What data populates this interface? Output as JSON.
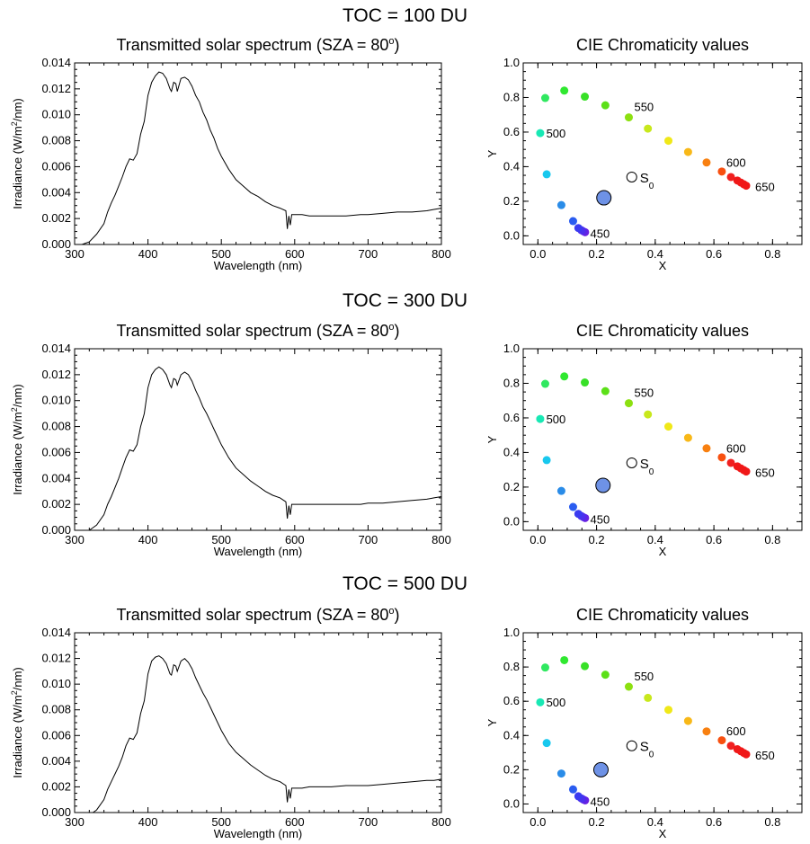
{
  "chart_data": [
    {
      "type": "line",
      "panel_heading": "TOC = 100 DU",
      "title": "Transmitted solar spectrum (SZA = 80",
      "title_superscript": "o",
      "title_suffix": ")",
      "xlabel": "Wavelength (nm)",
      "ylabel_prefix": "Irradiance (W/m",
      "ylabel_superscript": "2",
      "ylabel_suffix": "/nm)",
      "xlim": [
        300,
        800
      ],
      "ylim": [
        0,
        0.014
      ],
      "xticks": [
        "300",
        "400",
        "500",
        "600",
        "700",
        "800"
      ],
      "yticks": [
        "0.000",
        "0.002",
        "0.004",
        "0.006",
        "0.008",
        "0.010",
        "0.012",
        "0.014"
      ],
      "grid": false,
      "series": [
        {
          "x": [
            310,
            320,
            330,
            340,
            345,
            350,
            355,
            360,
            365,
            370,
            375,
            380,
            385,
            390,
            395,
            400,
            405,
            410,
            415,
            420,
            425,
            430,
            432,
            435,
            438,
            440,
            445,
            450,
            455,
            460,
            465,
            470,
            475,
            480,
            485,
            490,
            495,
            500,
            510,
            520,
            530,
            540,
            550,
            560,
            570,
            580,
            588,
            590,
            592,
            594,
            596,
            600,
            610,
            620,
            630,
            650,
            670,
            690,
            700,
            720,
            740,
            760,
            780,
            790,
            800
          ],
          "y": [
            0.0,
            0.0002,
            0.0008,
            0.0016,
            0.0025,
            0.0032,
            0.0038,
            0.0045,
            0.0052,
            0.006,
            0.0066,
            0.0065,
            0.007,
            0.0085,
            0.0095,
            0.0115,
            0.0125,
            0.013,
            0.0133,
            0.0132,
            0.0128,
            0.012,
            0.0118,
            0.0125,
            0.0124,
            0.0118,
            0.0128,
            0.0129,
            0.0127,
            0.0122,
            0.0115,
            0.011,
            0.0102,
            0.0096,
            0.0088,
            0.0082,
            0.0074,
            0.0068,
            0.0058,
            0.005,
            0.0045,
            0.004,
            0.0037,
            0.0033,
            0.003,
            0.0028,
            0.0026,
            0.0012,
            0.0022,
            0.0015,
            0.0023,
            0.0023,
            0.0023,
            0.0022,
            0.0022,
            0.0022,
            0.0022,
            0.0023,
            0.0023,
            0.0024,
            0.0025,
            0.0025,
            0.0026,
            0.0027,
            0.0028
          ]
        }
      ]
    },
    {
      "type": "scatter",
      "title": "CIE Chromaticity values",
      "xlabel": "X",
      "ylabel": "Y",
      "xlim": [
        -0.05,
        0.9
      ],
      "ylim": [
        -0.05,
        1.0
      ],
      "xticks": [
        "0.0",
        "0.2",
        "0.4",
        "0.6",
        "0.8"
      ],
      "yticks": [
        "0.0",
        "0.2",
        "0.4",
        "0.6",
        "0.8",
        "1.0"
      ],
      "grid": false,
      "wavelength_labels": [
        {
          "text": "500",
          "x": 0.01,
          "y": 0.59
        },
        {
          "text": "550",
          "x": 0.31,
          "y": 0.69
        },
        {
          "text": "600",
          "x": 0.63,
          "y": 0.38
        },
        {
          "text": "650",
          "x": 0.71,
          "y": 0.29
        },
        {
          "text": "450",
          "x": 0.16,
          "y": 0.02
        }
      ],
      "locus": [
        {
          "x": 0.161,
          "y": 0.021,
          "color": "#6a20e0"
        },
        {
          "x": 0.155,
          "y": 0.026,
          "color": "#5a26e8"
        },
        {
          "x": 0.148,
          "y": 0.033,
          "color": "#4a30ee"
        },
        {
          "x": 0.138,
          "y": 0.045,
          "color": "#3a3af0"
        },
        {
          "x": 0.12,
          "y": 0.085,
          "color": "#2a5cf0"
        },
        {
          "x": 0.08,
          "y": 0.178,
          "color": "#2a8ce8"
        },
        {
          "x": 0.03,
          "y": 0.356,
          "color": "#18c8ee"
        },
        {
          "x": 0.008,
          "y": 0.594,
          "color": "#18e8b4"
        },
        {
          "x": 0.025,
          "y": 0.797,
          "color": "#30e860"
        },
        {
          "x": 0.09,
          "y": 0.84,
          "color": "#30e830"
        },
        {
          "x": 0.16,
          "y": 0.805,
          "color": "#38e028"
        },
        {
          "x": 0.23,
          "y": 0.755,
          "color": "#5ce018"
        },
        {
          "x": 0.31,
          "y": 0.685,
          "color": "#8ce010"
        },
        {
          "x": 0.375,
          "y": 0.62,
          "color": "#c8e81c"
        },
        {
          "x": 0.445,
          "y": 0.55,
          "color": "#f0e818"
        },
        {
          "x": 0.512,
          "y": 0.485,
          "color": "#f8b818"
        },
        {
          "x": 0.575,
          "y": 0.424,
          "color": "#f88010"
        },
        {
          "x": 0.627,
          "y": 0.372,
          "color": "#f85010"
        },
        {
          "x": 0.658,
          "y": 0.34,
          "color": "#f02020"
        },
        {
          "x": 0.68,
          "y": 0.32,
          "color": "#f01818"
        },
        {
          "x": 0.692,
          "y": 0.308,
          "color": "#f01818"
        },
        {
          "x": 0.702,
          "y": 0.298,
          "color": "#f01818"
        },
        {
          "x": 0.71,
          "y": 0.29,
          "color": "#f01818"
        }
      ],
      "source_point": {
        "x": 0.32,
        "y": 0.34,
        "label": "S",
        "label_sub": "0"
      },
      "result_point": {
        "x": 0.225,
        "y": 0.22,
        "color": "#6e92e6"
      }
    },
    {
      "type": "line",
      "panel_heading": "TOC = 300 DU",
      "title": "Transmitted solar spectrum (SZA = 80",
      "title_superscript": "o",
      "title_suffix": ")",
      "xlabel": "Wavelength (nm)",
      "ylabel_prefix": "Irradiance (W/m",
      "ylabel_superscript": "2",
      "ylabel_suffix": "/nm)",
      "xlim": [
        300,
        800
      ],
      "ylim": [
        0,
        0.014
      ],
      "xticks": [
        "300",
        "400",
        "500",
        "600",
        "700",
        "800"
      ],
      "yticks": [
        "0.000",
        "0.002",
        "0.004",
        "0.006",
        "0.008",
        "0.010",
        "0.012",
        "0.014"
      ],
      "grid": false,
      "series": [
        {
          "x": [
            320,
            330,
            340,
            345,
            350,
            355,
            360,
            365,
            370,
            375,
            380,
            385,
            390,
            395,
            400,
            405,
            410,
            415,
            420,
            425,
            430,
            432,
            435,
            438,
            440,
            445,
            450,
            455,
            460,
            465,
            470,
            475,
            480,
            485,
            490,
            495,
            500,
            510,
            520,
            530,
            540,
            550,
            560,
            570,
            580,
            588,
            590,
            592,
            594,
            596,
            600,
            610,
            620,
            630,
            650,
            670,
            690,
            700,
            720,
            740,
            760,
            780,
            790,
            800
          ],
          "y": [
            0.0,
            0.0004,
            0.0012,
            0.002,
            0.0026,
            0.0033,
            0.004,
            0.0048,
            0.0056,
            0.0062,
            0.0061,
            0.0066,
            0.008,
            0.009,
            0.011,
            0.012,
            0.0124,
            0.0126,
            0.0124,
            0.012,
            0.0112,
            0.011,
            0.0117,
            0.0116,
            0.0112,
            0.012,
            0.0122,
            0.012,
            0.0115,
            0.0108,
            0.0102,
            0.0095,
            0.009,
            0.0084,
            0.0078,
            0.0072,
            0.0066,
            0.0056,
            0.0048,
            0.0043,
            0.0038,
            0.0034,
            0.003,
            0.0027,
            0.0025,
            0.0022,
            0.0009,
            0.0019,
            0.0012,
            0.002,
            0.002,
            0.002,
            0.002,
            0.002,
            0.002,
            0.002,
            0.002,
            0.0021,
            0.0021,
            0.0022,
            0.0023,
            0.0024,
            0.0025,
            0.0026
          ]
        }
      ]
    },
    {
      "type": "scatter",
      "title": "CIE Chromaticity values",
      "xlabel": "X",
      "ylabel": "Y",
      "xlim": [
        -0.05,
        0.9
      ],
      "ylim": [
        -0.05,
        1.0
      ],
      "xticks": [
        "0.0",
        "0.2",
        "0.4",
        "0.6",
        "0.8"
      ],
      "yticks": [
        "0.0",
        "0.2",
        "0.4",
        "0.6",
        "0.8",
        "1.0"
      ],
      "grid": false,
      "wavelength_labels": [
        {
          "text": "500",
          "x": 0.01,
          "y": 0.59
        },
        {
          "text": "550",
          "x": 0.31,
          "y": 0.69
        },
        {
          "text": "600",
          "x": 0.63,
          "y": 0.38
        },
        {
          "text": "650",
          "x": 0.71,
          "y": 0.29
        },
        {
          "text": "450",
          "x": 0.16,
          "y": 0.02
        }
      ],
      "locus": [
        {
          "x": 0.161,
          "y": 0.021,
          "color": "#6a20e0"
        },
        {
          "x": 0.155,
          "y": 0.026,
          "color": "#5a26e8"
        },
        {
          "x": 0.148,
          "y": 0.033,
          "color": "#4a30ee"
        },
        {
          "x": 0.138,
          "y": 0.045,
          "color": "#3a3af0"
        },
        {
          "x": 0.12,
          "y": 0.085,
          "color": "#2a5cf0"
        },
        {
          "x": 0.08,
          "y": 0.178,
          "color": "#2a8ce8"
        },
        {
          "x": 0.03,
          "y": 0.356,
          "color": "#18c8ee"
        },
        {
          "x": 0.008,
          "y": 0.594,
          "color": "#18e8b4"
        },
        {
          "x": 0.025,
          "y": 0.797,
          "color": "#30e860"
        },
        {
          "x": 0.09,
          "y": 0.84,
          "color": "#30e830"
        },
        {
          "x": 0.16,
          "y": 0.805,
          "color": "#38e028"
        },
        {
          "x": 0.23,
          "y": 0.755,
          "color": "#5ce018"
        },
        {
          "x": 0.31,
          "y": 0.685,
          "color": "#8ce010"
        },
        {
          "x": 0.375,
          "y": 0.62,
          "color": "#c8e81c"
        },
        {
          "x": 0.445,
          "y": 0.55,
          "color": "#f0e818"
        },
        {
          "x": 0.512,
          "y": 0.485,
          "color": "#f8b818"
        },
        {
          "x": 0.575,
          "y": 0.424,
          "color": "#f88010"
        },
        {
          "x": 0.627,
          "y": 0.372,
          "color": "#f85010"
        },
        {
          "x": 0.658,
          "y": 0.34,
          "color": "#f02020"
        },
        {
          "x": 0.68,
          "y": 0.32,
          "color": "#f01818"
        },
        {
          "x": 0.692,
          "y": 0.308,
          "color": "#f01818"
        },
        {
          "x": 0.702,
          "y": 0.298,
          "color": "#f01818"
        },
        {
          "x": 0.71,
          "y": 0.29,
          "color": "#f01818"
        }
      ],
      "source_point": {
        "x": 0.32,
        "y": 0.34,
        "label": "S",
        "label_sub": "0"
      },
      "result_point": {
        "x": 0.222,
        "y": 0.21,
        "color": "#6e92e6"
      }
    },
    {
      "type": "line",
      "panel_heading": "TOC = 500 DU",
      "title": "Transmitted solar spectrum (SZA = 80",
      "title_superscript": "o",
      "title_suffix": ")",
      "xlabel": "Wavelength (nm)",
      "ylabel_prefix": "Irradiance (W/m",
      "ylabel_superscript": "2",
      "ylabel_suffix": "/nm)",
      "xlim": [
        300,
        800
      ],
      "ylim": [
        0,
        0.014
      ],
      "xticks": [
        "300",
        "400",
        "500",
        "600",
        "700",
        "800"
      ],
      "yticks": [
        "0.000",
        "0.002",
        "0.004",
        "0.006",
        "0.008",
        "0.010",
        "0.012",
        "0.014"
      ],
      "grid": false,
      "series": [
        {
          "x": [
            325,
            330,
            340,
            345,
            350,
            355,
            360,
            365,
            370,
            375,
            380,
            385,
            390,
            395,
            400,
            405,
            410,
            415,
            420,
            425,
            430,
            432,
            435,
            438,
            440,
            445,
            450,
            455,
            460,
            465,
            470,
            475,
            480,
            485,
            490,
            495,
            500,
            510,
            520,
            530,
            540,
            550,
            560,
            570,
            580,
            588,
            590,
            592,
            594,
            596,
            600,
            610,
            620,
            630,
            650,
            670,
            690,
            700,
            720,
            740,
            760,
            780,
            790,
            800
          ],
          "y": [
            0.0,
            0.0002,
            0.001,
            0.0018,
            0.0024,
            0.003,
            0.0036,
            0.0043,
            0.0052,
            0.0058,
            0.0057,
            0.0062,
            0.0077,
            0.0087,
            0.0108,
            0.0118,
            0.0121,
            0.0122,
            0.012,
            0.0116,
            0.0108,
            0.0107,
            0.0115,
            0.0114,
            0.011,
            0.0118,
            0.012,
            0.0117,
            0.0112,
            0.0105,
            0.0099,
            0.0093,
            0.0088,
            0.0082,
            0.0076,
            0.007,
            0.0064,
            0.0054,
            0.0047,
            0.0042,
            0.0037,
            0.0033,
            0.0029,
            0.0026,
            0.0024,
            0.0021,
            0.0008,
            0.0018,
            0.0011,
            0.0019,
            0.0019,
            0.0019,
            0.002,
            0.002,
            0.002,
            0.0021,
            0.0021,
            0.0021,
            0.0022,
            0.0023,
            0.0024,
            0.0025,
            0.0025,
            0.0026
          ]
        }
      ]
    },
    {
      "type": "scatter",
      "title": "CIE Chromaticity values",
      "xlabel": "X",
      "ylabel": "Y",
      "xlim": [
        -0.05,
        0.9
      ],
      "ylim": [
        -0.05,
        1.0
      ],
      "xticks": [
        "0.0",
        "0.2",
        "0.4",
        "0.6",
        "0.8"
      ],
      "yticks": [
        "0.0",
        "0.2",
        "0.4",
        "0.6",
        "0.8",
        "1.0"
      ],
      "grid": false,
      "wavelength_labels": [
        {
          "text": "500",
          "x": 0.01,
          "y": 0.59
        },
        {
          "text": "550",
          "x": 0.31,
          "y": 0.69
        },
        {
          "text": "600",
          "x": 0.63,
          "y": 0.38
        },
        {
          "text": "650",
          "x": 0.71,
          "y": 0.29
        },
        {
          "text": "450",
          "x": 0.16,
          "y": 0.02
        }
      ],
      "locus": [
        {
          "x": 0.161,
          "y": 0.021,
          "color": "#6a20e0"
        },
        {
          "x": 0.155,
          "y": 0.026,
          "color": "#5a26e8"
        },
        {
          "x": 0.148,
          "y": 0.033,
          "color": "#4a30ee"
        },
        {
          "x": 0.138,
          "y": 0.045,
          "color": "#3a3af0"
        },
        {
          "x": 0.12,
          "y": 0.085,
          "color": "#2a5cf0"
        },
        {
          "x": 0.08,
          "y": 0.178,
          "color": "#2a8ce8"
        },
        {
          "x": 0.03,
          "y": 0.356,
          "color": "#18c8ee"
        },
        {
          "x": 0.008,
          "y": 0.594,
          "color": "#18e8b4"
        },
        {
          "x": 0.025,
          "y": 0.797,
          "color": "#30e860"
        },
        {
          "x": 0.09,
          "y": 0.84,
          "color": "#30e830"
        },
        {
          "x": 0.16,
          "y": 0.805,
          "color": "#38e028"
        },
        {
          "x": 0.23,
          "y": 0.755,
          "color": "#5ce018"
        },
        {
          "x": 0.31,
          "y": 0.685,
          "color": "#8ce010"
        },
        {
          "x": 0.375,
          "y": 0.62,
          "color": "#c8e81c"
        },
        {
          "x": 0.445,
          "y": 0.55,
          "color": "#f0e818"
        },
        {
          "x": 0.512,
          "y": 0.485,
          "color": "#f8b818"
        },
        {
          "x": 0.575,
          "y": 0.424,
          "color": "#f88010"
        },
        {
          "x": 0.627,
          "y": 0.372,
          "color": "#f85010"
        },
        {
          "x": 0.658,
          "y": 0.34,
          "color": "#f02020"
        },
        {
          "x": 0.68,
          "y": 0.32,
          "color": "#f01818"
        },
        {
          "x": 0.692,
          "y": 0.308,
          "color": "#f01818"
        },
        {
          "x": 0.702,
          "y": 0.298,
          "color": "#f01818"
        },
        {
          "x": 0.71,
          "y": 0.29,
          "color": "#f01818"
        }
      ],
      "source_point": {
        "x": 0.32,
        "y": 0.34,
        "label": "S",
        "label_sub": "0"
      },
      "result_point": {
        "x": 0.215,
        "y": 0.2,
        "color": "#6e92e6"
      }
    }
  ]
}
